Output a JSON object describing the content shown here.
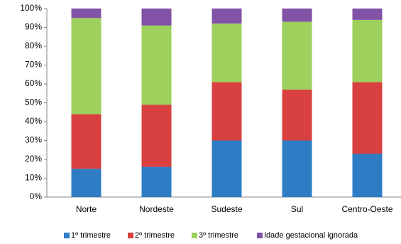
{
  "chart_data": {
    "type": "stacked_bar",
    "categories": [
      "Norte",
      "Nordeste",
      "Sudeste",
      "Sul",
      "Centro-Oeste"
    ],
    "series": [
      {
        "name": "1º trimestre",
        "color": "#2e7dc4",
        "values": [
          15,
          16,
          30,
          30,
          23
        ]
      },
      {
        "name": "2º trimestre",
        "color": "#d94040",
        "values": [
          29,
          33,
          31,
          27,
          38
        ]
      },
      {
        "name": "3º trimestre",
        "color": "#9dd05c",
        "values": [
          51,
          42,
          31,
          36,
          33
        ]
      },
      {
        "name": "Idade gestacional ignorada",
        "color": "#8152a6",
        "values": [
          5,
          9,
          8,
          7,
          6
        ]
      }
    ],
    "ylim": [
      0,
      100
    ],
    "yticks": [
      {
        "value": 0,
        "label": "0%"
      },
      {
        "value": 10,
        "label": "10%"
      },
      {
        "value": 20,
        "label": "20%"
      },
      {
        "value": 30,
        "label": "30%"
      },
      {
        "value": 40,
        "label": "40%"
      },
      {
        "value": 50,
        "label": "50%"
      },
      {
        "value": 60,
        "label": "60%"
      },
      {
        "value": 70,
        "label": "70%"
      },
      {
        "value": 80,
        "label": "80%"
      },
      {
        "value": 90,
        "label": "90%"
      },
      {
        "value": 100,
        "label": "100%"
      }
    ],
    "grid": false,
    "legend": "bottom"
  }
}
